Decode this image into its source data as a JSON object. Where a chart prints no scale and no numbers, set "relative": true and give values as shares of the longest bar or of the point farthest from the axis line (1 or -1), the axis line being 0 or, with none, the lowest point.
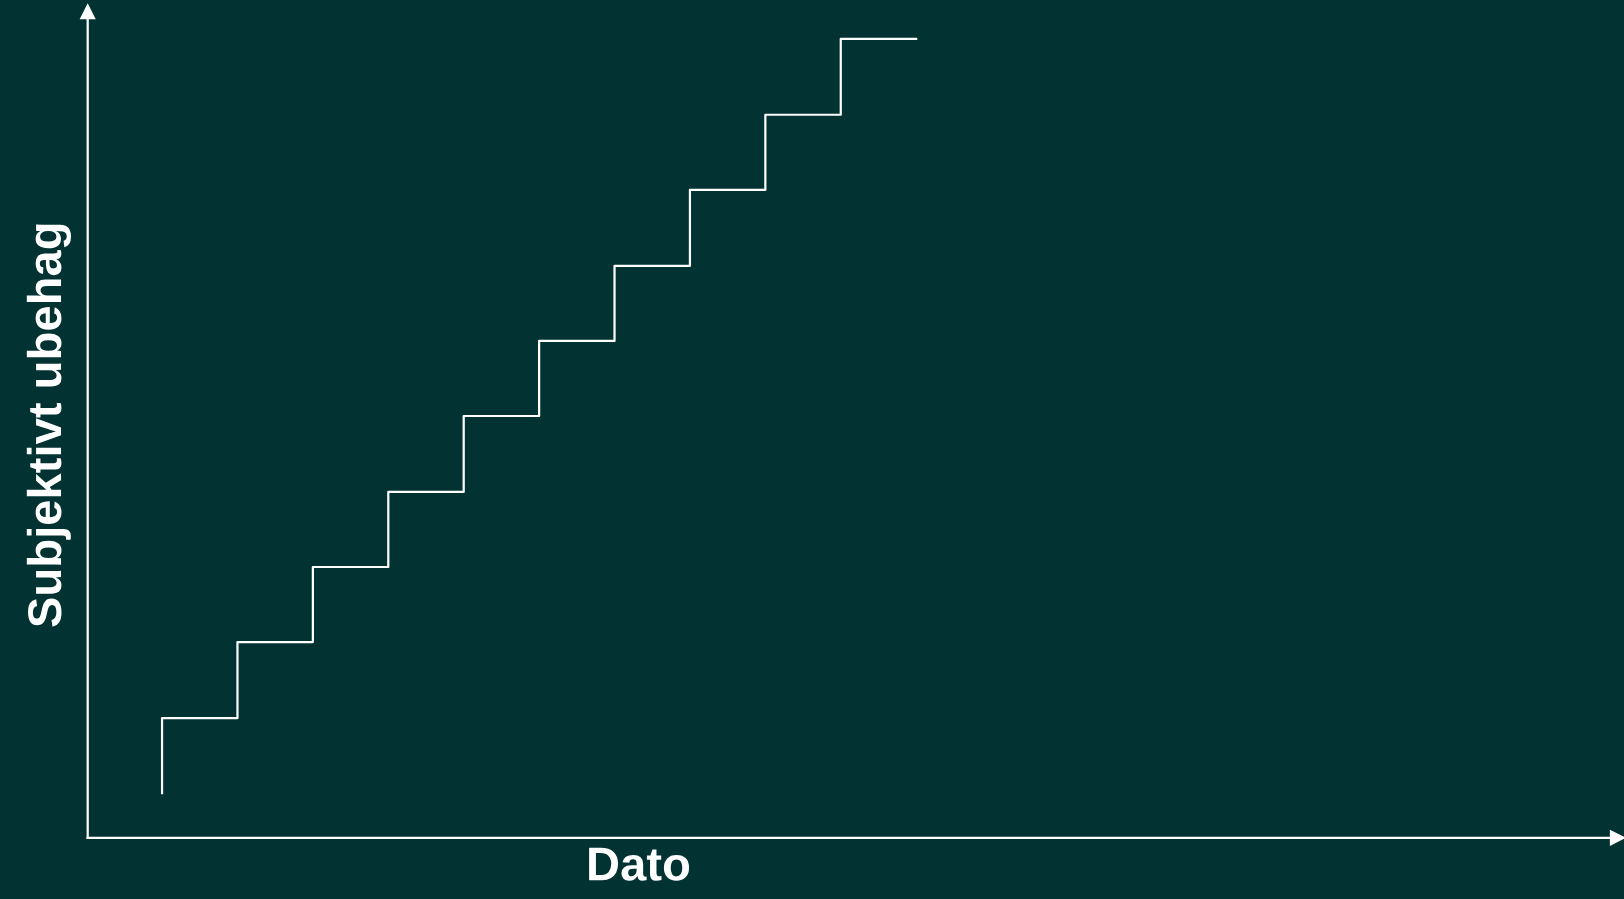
{
  "chart_data": {
    "type": "step",
    "relative": true,
    "xlabel": "Dato",
    "ylabel": "Subjektivt ubehag",
    "categories": [
      null,
      null,
      null,
      null,
      null,
      null,
      null,
      null,
      null,
      null,
      null
    ],
    "series": [
      {
        "color": "#ffffff",
        "values": [
          0.056,
          0.15,
          0.245,
          0.339,
          0.433,
          0.528,
          0.622,
          0.716,
          0.811,
          0.905,
          1.0
        ]
      }
    ],
    "grid": false,
    "marker": "none",
    "line_style": "solid",
    "tick_labels": false
  }
}
